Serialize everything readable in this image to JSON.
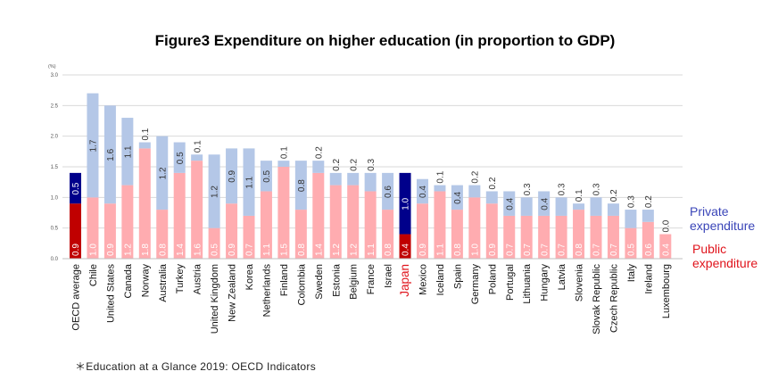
{
  "chart_data": {
    "type": "bar",
    "stacked": true,
    "title": "Figure3 Expenditure on higher education (in proportion to GDP)",
    "unit_label": "(%)",
    "ylim": [
      0,
      3.0
    ],
    "yticks": [
      "0.0",
      "0.5",
      "1.0",
      "1.5",
      "2.0",
      "2.5",
      "3.0"
    ],
    "grid": true,
    "categories": [
      "OECD average",
      "Chile",
      "United States",
      "Canada",
      "Norway",
      "Australia",
      "Turkey",
      "Austria",
      "United Kingdom",
      "New Zealand",
      "Korea",
      "Netherlands",
      "Finland",
      "Colombia",
      "Sweden",
      "Estonia",
      "Belgium",
      "France",
      "Israel",
      "Japan",
      "Mexico",
      "Iceland",
      "Spain",
      "Germany",
      "Poland",
      "Portugal",
      "Lithuania",
      "Hungary",
      "Latvia",
      "Slovenia",
      "Slovak Republic",
      "Czech Republic",
      "Italy",
      "Ireland",
      "Luxembourg"
    ],
    "highlight_categories": [
      "OECD average",
      "Japan"
    ],
    "series": [
      {
        "name": "Public expenditure",
        "color": "#ffacb0",
        "highlight_color": "#c00000",
        "values": [
          0.9,
          1.0,
          0.9,
          1.2,
          1.8,
          0.8,
          1.4,
          1.6,
          0.5,
          0.9,
          0.7,
          1.1,
          1.5,
          0.8,
          1.4,
          1.2,
          1.2,
          1.1,
          0.8,
          0.4,
          0.9,
          1.1,
          0.8,
          1.0,
          0.9,
          0.7,
          0.7,
          0.7,
          0.7,
          0.8,
          0.7,
          0.7,
          0.5,
          0.6,
          0.4
        ],
        "labels": [
          "0.9",
          "1.0",
          "0.9",
          "1.2",
          "1.8",
          "0.8",
          "1.4",
          "1.6",
          "0.5",
          "0.9",
          "0.7",
          "1.1",
          "1.5",
          "0.8",
          "1.4",
          "1.2",
          "1.2",
          "1.1",
          "0.8",
          "0.4",
          "0.9",
          "1.1",
          "0.8",
          "1.0",
          "0.9",
          "0.7",
          "0.7",
          "0.7",
          "0.7",
          "0.8",
          "0.7",
          "0.7",
          "0.5",
          "0.6",
          "0.4"
        ]
      },
      {
        "name": "Private expenditure",
        "color": "#b4c7e7",
        "highlight_color": "#00008b",
        "values": [
          0.5,
          1.7,
          1.6,
          1.1,
          0.1,
          1.2,
          0.5,
          0.1,
          1.2,
          0.9,
          1.1,
          0.5,
          0.1,
          0.8,
          0.2,
          0.2,
          0.2,
          0.3,
          0.6,
          1.0,
          0.4,
          0.1,
          0.4,
          0.2,
          0.2,
          0.4,
          0.3,
          0.4,
          0.3,
          0.1,
          0.3,
          0.2,
          0.3,
          0.2,
          0.0
        ],
        "labels": [
          "0.5",
          "1.7",
          "1.6",
          "1.1",
          "0.1",
          "1.2",
          "0.5",
          "0.1",
          "1.2",
          "0.9",
          "1.1",
          "0.5",
          "0.1",
          "0.8",
          "0.2",
          "0.2",
          "0.2",
          "0.3",
          "0.6",
          "1.0",
          "0.4",
          "0.1",
          "0.4",
          "0.2",
          "0.2",
          "0.4",
          "0.3",
          "0.4",
          "0.3",
          "0.1",
          "0.3",
          "0.2",
          "0.3",
          "0.2",
          "0.0"
        ]
      }
    ],
    "legend": {
      "private_label": "Private\nexpenditure",
      "public_label": "Public\nexpenditure",
      "placement": "right",
      "private_color": "#3a45b8",
      "public_color": "#e0141c"
    }
  },
  "source_note": "＊Education at a Glance 2019: OECD Indicators"
}
